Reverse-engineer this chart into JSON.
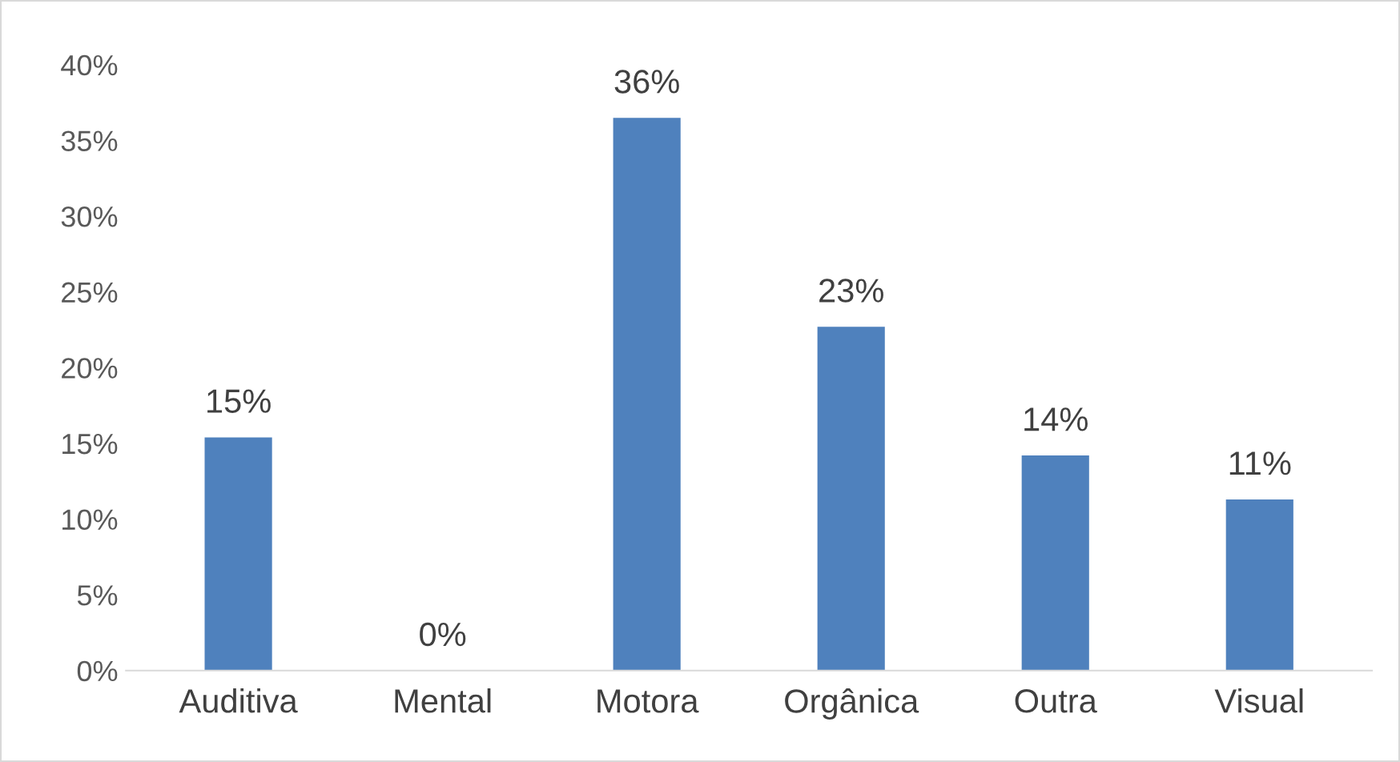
{
  "chart_data": {
    "type": "bar",
    "categories": [
      "Auditiva",
      "Mental",
      "Motora",
      "Orgânica",
      "Outra",
      "Visual"
    ],
    "values": [
      15.4,
      0,
      36.5,
      22.7,
      14.2,
      11.3
    ],
    "value_labels": [
      "15%",
      "0%",
      "36%",
      "23%",
      "14%",
      "11%"
    ],
    "color": "#4f81bd",
    "ylim": [
      0,
      40
    ],
    "yticks": [
      {
        "value": 0,
        "label": "0%"
      },
      {
        "value": 5,
        "label": "5%"
      },
      {
        "value": 10,
        "label": "10%"
      },
      {
        "value": 15,
        "label": "15%"
      },
      {
        "value": 20,
        "label": "20%"
      },
      {
        "value": 25,
        "label": "25%"
      },
      {
        "value": 30,
        "label": "30%"
      },
      {
        "value": 35,
        "label": "35%"
      },
      {
        "value": 40,
        "label": "40%"
      }
    ],
    "grid": false,
    "legend": false
  }
}
